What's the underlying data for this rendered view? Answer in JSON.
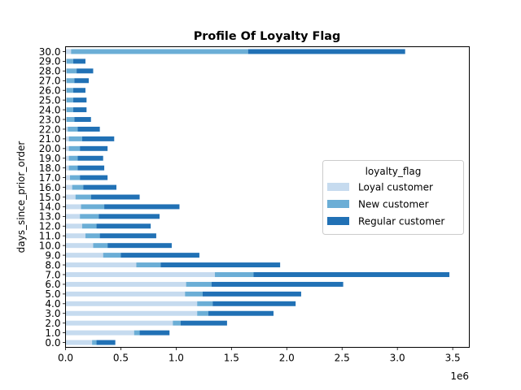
{
  "chart_data": {
    "type": "bar",
    "orientation": "horizontal",
    "stacked": true,
    "title": "Profile Of Loyalty Flag",
    "xlabel": "",
    "ylabel": "days_since_prior_order",
    "x_offset_label": "1e6",
    "xlim": [
      0,
      3.65
    ],
    "x_ticks": [
      0.0,
      0.5,
      1.0,
      1.5,
      2.0,
      2.5,
      3.0,
      3.5
    ],
    "x_tick_labels": [
      "0.0",
      "0.5",
      "1.0",
      "1.5",
      "2.0",
      "2.5",
      "3.0",
      "3.5"
    ],
    "grid": false,
    "legend_title": "loyalty_flag",
    "legend_position": "center-right",
    "categories": [
      "0.0",
      "1.0",
      "2.0",
      "3.0",
      "4.0",
      "5.0",
      "6.0",
      "7.0",
      "8.0",
      "9.0",
      "10.0",
      "11.0",
      "12.0",
      "13.0",
      "14.0",
      "15.0",
      "16.0",
      "17.0",
      "18.0",
      "19.0",
      "20.0",
      "21.0",
      "22.0",
      "23.0",
      "24.0",
      "25.0",
      "26.0",
      "27.0",
      "28.0",
      "29.0",
      "30.0"
    ],
    "series": [
      {
        "name": "Loyal customer",
        "color": "#c6dbef",
        "values": [
          0.24,
          0.62,
          0.97,
          1.19,
          1.19,
          1.08,
          1.09,
          1.35,
          0.64,
          0.34,
          0.25,
          0.18,
          0.15,
          0.13,
          0.14,
          0.09,
          0.06,
          0.04,
          0.03,
          0.03,
          0.03,
          0.03,
          0.02,
          0.01,
          0.01,
          0.01,
          0.01,
          0.01,
          0.01,
          0.01,
          0.05
        ]
      },
      {
        "name": "New customer",
        "color": "#6baed6",
        "values": [
          0.04,
          0.05,
          0.07,
          0.1,
          0.14,
          0.16,
          0.23,
          0.35,
          0.22,
          0.16,
          0.13,
          0.13,
          0.13,
          0.17,
          0.21,
          0.14,
          0.1,
          0.09,
          0.08,
          0.08,
          0.1,
          0.12,
          0.09,
          0.07,
          0.06,
          0.06,
          0.06,
          0.07,
          0.09,
          0.06,
          1.6
        ]
      },
      {
        "name": "Regular customer",
        "color": "#2171b5",
        "values": [
          0.17,
          0.27,
          0.42,
          0.59,
          0.75,
          0.89,
          1.19,
          1.77,
          1.08,
          0.71,
          0.58,
          0.51,
          0.49,
          0.55,
          0.68,
          0.44,
          0.3,
          0.25,
          0.24,
          0.23,
          0.25,
          0.29,
          0.2,
          0.15,
          0.12,
          0.12,
          0.11,
          0.13,
          0.15,
          0.11,
          1.42
        ]
      }
    ]
  }
}
